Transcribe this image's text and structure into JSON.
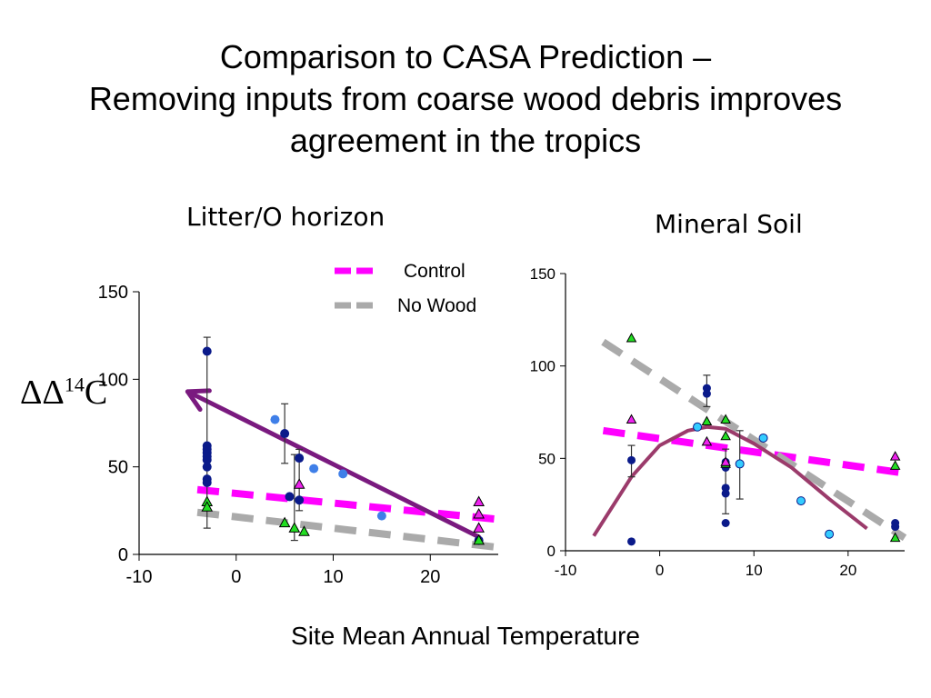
{
  "title": {
    "line1": "Comparison to CASA Prediction –",
    "line2": "Removing inputs from coarse wood debris improves",
    "line3": "agreement in the tropics"
  },
  "ylabel_main": "ΔΔ",
  "ylabel_sup": "14",
  "ylabel_suffix": "C",
  "xlabel_main": "Site Mean Annual Temperature",
  "colors": {
    "control": "#ff00ff",
    "no_wood": "#aaaaaa",
    "arrow": "#7a1a7f",
    "curve": "#9b3b6b",
    "navy_point": "#0a1a8a",
    "blue_point": "#3f7fe8",
    "cyan_point": "#33ccff",
    "green_triangle": "#22dd22",
    "magenta_triangle": "#ee22ee"
  },
  "chart_data": [
    {
      "type": "scatter",
      "panel_title": "Litter/O horizon",
      "xlim": [
        -10,
        27
      ],
      "ylim": [
        0,
        150
      ],
      "xticks": [
        -10,
        0,
        10,
        20
      ],
      "yticks": [
        0,
        50,
        100,
        150
      ],
      "legend": [
        {
          "name": "Control",
          "style": "dashed",
          "color": "#ff00ff"
        },
        {
          "name": "No Wood",
          "style": "dashed",
          "color": "#aaaaaa"
        }
      ],
      "series": [
        {
          "name": "Control",
          "kind": "line",
          "x": [
            -4,
            27
          ],
          "y": [
            37,
            20
          ]
        },
        {
          "name": "No Wood",
          "kind": "line",
          "x": [
            -4,
            27
          ],
          "y": [
            24,
            4
          ]
        },
        {
          "kind": "arrow",
          "x": [
            25,
            -5
          ],
          "y": [
            10,
            93
          ]
        },
        {
          "kind": "navy_points",
          "x": [
            -3,
            -3,
            -3,
            -3,
            -3,
            -3,
            -3,
            -3,
            -3,
            5,
            5.5,
            6.5,
            6.5,
            25
          ],
          "y": [
            116,
            62,
            58,
            54,
            50,
            43,
            41,
            60,
            56,
            69,
            33,
            55,
            31,
            8
          ]
        },
        {
          "kind": "blue_points",
          "x": [
            4,
            8,
            11,
            15
          ],
          "y": [
            77,
            49,
            46,
            22
          ]
        },
        {
          "kind": "green_triangles",
          "x": [
            -3,
            -3,
            5,
            6,
            7,
            25
          ],
          "y": [
            30,
            27,
            18,
            15,
            13,
            8
          ]
        },
        {
          "kind": "magenta_triangles",
          "x": [
            6.5,
            25,
            25,
            25
          ],
          "y": [
            40,
            30,
            23,
            15
          ]
        },
        {
          "kind": "error_bars",
          "x": [
            -3,
            5,
            6,
            6.5
          ],
          "ylow": [
            15,
            52,
            8,
            25
          ],
          "yhigh": [
            124,
            86,
            57,
            60
          ]
        }
      ]
    },
    {
      "type": "scatter",
      "panel_title": "Mineral Soil",
      "xlim": [
        -10,
        26
      ],
      "ylim": [
        0,
        150
      ],
      "xticks": [
        -10,
        0,
        10,
        20
      ],
      "yticks": [
        0,
        50,
        100,
        150
      ],
      "series": [
        {
          "name": "Control",
          "kind": "line",
          "x": [
            -6,
            26
          ],
          "y": [
            65,
            42
          ]
        },
        {
          "name": "No Wood",
          "kind": "line",
          "x": [
            -6,
            26
          ],
          "y": [
            113,
            7
          ]
        },
        {
          "kind": "curve",
          "x": [
            -7,
            -3,
            0,
            3,
            5,
            7,
            10,
            14,
            18,
            22
          ],
          "y": [
            8,
            40,
            57,
            65,
            67,
            66,
            58,
            45,
            28,
            12
          ]
        },
        {
          "kind": "navy_points",
          "x": [
            -3,
            -3,
            5,
            5,
            7,
            7,
            7,
            7,
            7,
            25,
            25
          ],
          "y": [
            49,
            5,
            88,
            85,
            48,
            34,
            31,
            15,
            45,
            15,
            13
          ]
        },
        {
          "kind": "cyan_points",
          "x": [
            4,
            8.5,
            11,
            15,
            18
          ],
          "y": [
            67,
            47,
            61,
            27,
            9
          ]
        },
        {
          "kind": "green_triangles",
          "x": [
            -3,
            5,
            7,
            7,
            7,
            25,
            25
          ],
          "y": [
            115,
            70,
            71,
            62,
            47,
            46,
            7
          ]
        },
        {
          "kind": "magenta_triangles",
          "x": [
            -3,
            5,
            7,
            25
          ],
          "y": [
            71,
            59,
            48,
            51
          ]
        },
        {
          "kind": "error_bars",
          "x": [
            -3,
            5,
            7,
            8.5
          ],
          "ylow": [
            40,
            78,
            20,
            28
          ],
          "yhigh": [
            57,
            95,
            55,
            65
          ]
        }
      ]
    }
  ]
}
